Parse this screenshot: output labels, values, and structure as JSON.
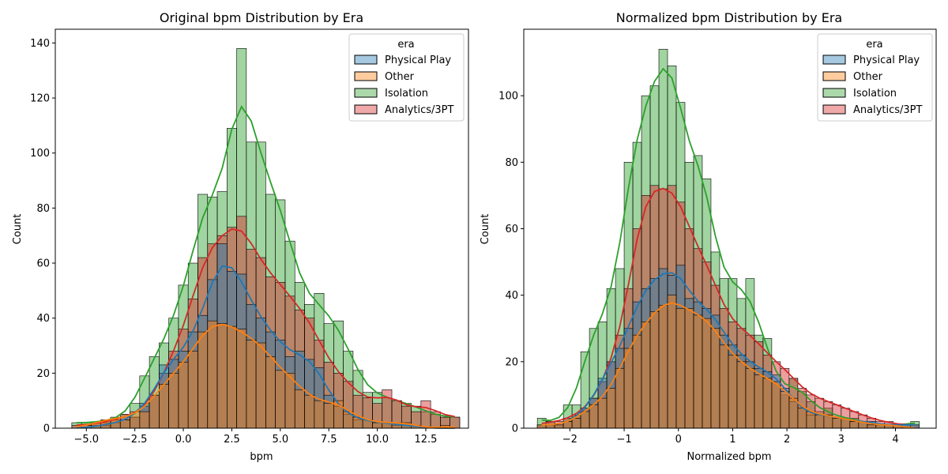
{
  "chart_data": [
    {
      "type": "bar",
      "title": "Original bpm Distribution by Era",
      "xlabel": "bpm",
      "ylabel": "Count",
      "xlim": [
        -6.6,
        14.7
      ],
      "ylim": [
        0,
        145
      ],
      "xticks": [
        -5.0,
        -2.5,
        0.0,
        2.5,
        5.0,
        7.5,
        10.0,
        12.5
      ],
      "xtick_labels": [
        "−5.0",
        "−2.5",
        "0.0",
        "2.5",
        "5.0",
        "7.5",
        "10.0",
        "12.5"
      ],
      "yticks": [
        0,
        20,
        40,
        60,
        80,
        100,
        120,
        140
      ],
      "ytick_labels": [
        "0",
        "20",
        "40",
        "60",
        "80",
        "100",
        "120",
        "140"
      ],
      "bin_start": -5.75,
      "bin_width": 0.5,
      "legend": {
        "title": "era",
        "position": "top-right",
        "entries": [
          "Physical Play",
          "Other",
          "Isolation",
          "Analytics/3PT"
        ]
      },
      "series": [
        {
          "name": "Physical Play",
          "color": "#1f77b4",
          "values": [
            0,
            0,
            1,
            1,
            2,
            3,
            4,
            9,
            12,
            23,
            25,
            28,
            35,
            41,
            54,
            67,
            57,
            56,
            45,
            40,
            35,
            32,
            26,
            28,
            25,
            22,
            12,
            8,
            5,
            3,
            3,
            2,
            2,
            1,
            1,
            1,
            0,
            0,
            0,
            0
          ]
        },
        {
          "name": "Other",
          "color": "#ff7f0e",
          "values": [
            0,
            1,
            2,
            3,
            4,
            3,
            6,
            6,
            12,
            16,
            20,
            24,
            28,
            35,
            39,
            38,
            37,
            36,
            32,
            31,
            26,
            21,
            20,
            14,
            12,
            10,
            9,
            10,
            6,
            4,
            3,
            2,
            2,
            2,
            2,
            1,
            0,
            0,
            1,
            0
          ]
        },
        {
          "name": "Isolation",
          "color": "#2ca02c",
          "values": [
            2,
            2,
            2,
            3,
            3,
            5,
            9,
            19,
            26,
            31,
            40,
            52,
            60,
            85,
            84,
            86,
            109,
            138,
            104,
            104,
            85,
            83,
            68,
            53,
            45,
            49,
            38,
            39,
            28,
            21,
            13,
            13,
            11,
            10,
            9,
            8,
            6,
            5,
            4,
            4
          ]
        },
        {
          "name": "Analytics/3PT",
          "color": "#d62728",
          "values": [
            1,
            1,
            2,
            2,
            3,
            5,
            4,
            8,
            12,
            20,
            28,
            36,
            47,
            62,
            67,
            70,
            73,
            77,
            65,
            62,
            55,
            53,
            48,
            43,
            40,
            32,
            24,
            20,
            17,
            12,
            11,
            9,
            14,
            10,
            8,
            6,
            10,
            6,
            4,
            4
          ]
        }
      ]
    },
    {
      "type": "bar",
      "title": "Normalized bpm Distribution by Era",
      "xlabel": "Normalized bpm",
      "ylabel": "Count",
      "xlim": [
        -2.85,
        4.75
      ],
      "ylim": [
        0,
        120
      ],
      "xticks": [
        -2,
        -1,
        0,
        1,
        2,
        3,
        4
      ],
      "xtick_labels": [
        "−2",
        "−1",
        "0",
        "1",
        "2",
        "3",
        "4"
      ],
      "yticks": [
        0,
        20,
        40,
        60,
        80,
        100
      ],
      "ytick_labels": [
        "0",
        "20",
        "40",
        "60",
        "80",
        "100"
      ],
      "bin_start": -2.6,
      "bin_width": 0.16,
      "legend": {
        "title": "era",
        "position": "top-right",
        "entries": [
          "Physical Play",
          "Other",
          "Isolation",
          "Analytics/3PT"
        ]
      },
      "series": [
        {
          "name": "Physical Play",
          "color": "#1f77b4",
          "values": [
            1,
            1,
            1,
            2,
            3,
            6,
            9,
            15,
            20,
            24,
            30,
            38,
            42,
            45,
            48,
            46,
            49,
            39,
            38,
            36,
            34,
            28,
            25,
            22,
            20,
            18,
            17,
            16,
            12,
            8,
            6,
            4,
            4,
            4,
            3,
            3,
            2,
            2,
            2,
            1,
            1,
            1,
            1,
            1
          ]
        },
        {
          "name": "Other",
          "color": "#ff7f0e",
          "values": [
            1,
            1,
            1,
            2,
            3,
            5,
            7,
            9,
            12,
            18,
            24,
            28,
            32,
            35,
            37,
            40,
            36,
            36,
            34,
            33,
            30,
            25,
            22,
            20,
            18,
            16,
            15,
            14,
            11,
            9,
            6,
            5,
            4,
            4,
            3,
            3,
            2,
            2,
            1,
            1,
            1,
            1,
            0,
            0
          ]
        },
        {
          "name": "Isolation",
          "color": "#2ca02c",
          "values": [
            3,
            2,
            1,
            7,
            7,
            23,
            30,
            32,
            42,
            48,
            80,
            86,
            100,
            103,
            114,
            109,
            98,
            80,
            82,
            75,
            53,
            45,
            45,
            39,
            45,
            28,
            27,
            14,
            10,
            15,
            11,
            8,
            5,
            6,
            3,
            3,
            3,
            2,
            1,
            1,
            1,
            1,
            1,
            2
          ]
        },
        {
          "name": "Analytics/3PT",
          "color": "#d62728",
          "values": [
            1,
            2,
            2,
            3,
            4,
            6,
            9,
            14,
            20,
            28,
            42,
            60,
            70,
            73,
            72,
            73,
            68,
            60,
            54,
            50,
            43,
            36,
            32,
            30,
            28,
            26,
            22,
            20,
            18,
            15,
            12,
            10,
            9,
            8,
            7,
            6,
            5,
            4,
            3,
            2,
            2,
            1,
            1,
            1
          ]
        }
      ]
    }
  ]
}
